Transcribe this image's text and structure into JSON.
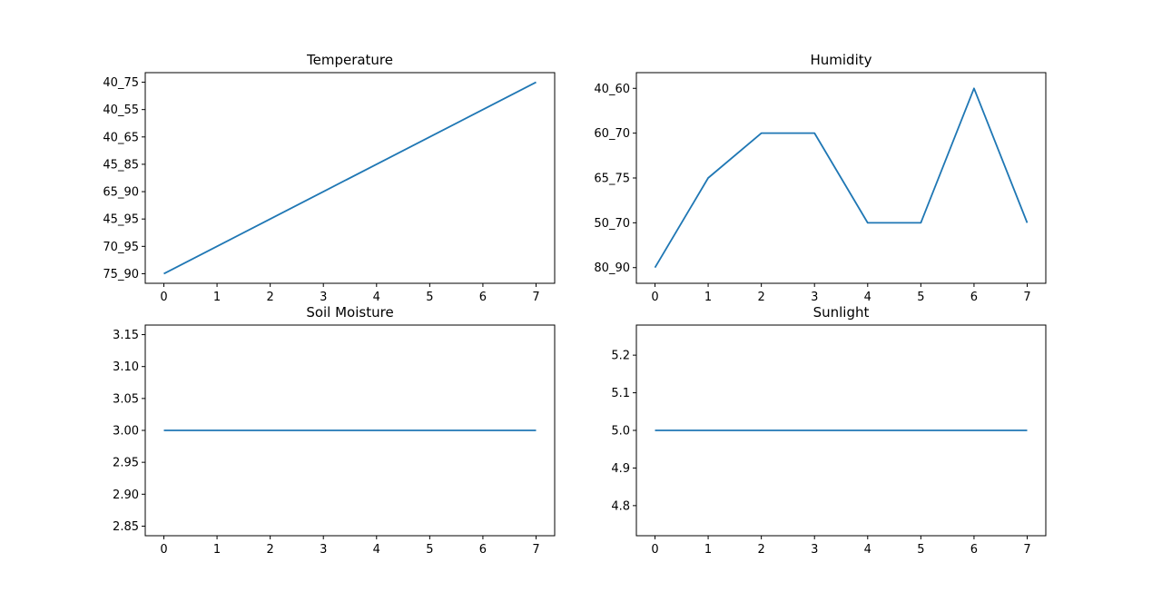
{
  "colors": {
    "series": "#1f77b4",
    "axes": "#000000",
    "background": "#ffffff"
  },
  "chart_data": [
    {
      "type": "line",
      "title": "Temperature",
      "xlabel": "",
      "ylabel": "",
      "x": [
        0,
        1,
        2,
        3,
        4,
        5,
        6,
        7
      ],
      "y_categories": [
        "75_90",
        "70_95",
        "45_95",
        "65_90",
        "45_85",
        "40_65",
        "40_55",
        "40_75"
      ],
      "series": [
        {
          "values": [
            "75_90",
            "70_95",
            "45_95",
            "65_90",
            "45_85",
            "40_65",
            "40_55",
            "40_75"
          ]
        }
      ],
      "xlim": [
        -0.35,
        7.35
      ],
      "xticks": [
        0,
        1,
        2,
        3,
        4,
        5,
        6,
        7
      ],
      "grid": false,
      "legend": "none"
    },
    {
      "type": "line",
      "title": "Humidity",
      "xlabel": "",
      "ylabel": "",
      "x": [
        0,
        1,
        2,
        3,
        4,
        5,
        6,
        7
      ],
      "y_categories": [
        "80_90",
        "50_70",
        "65_75",
        "60_70",
        "40_60"
      ],
      "series": [
        {
          "values": [
            "80_90",
            "65_75",
            "60_70",
            "60_70",
            "50_70",
            "50_70",
            "40_60",
            "50_70"
          ]
        }
      ],
      "xlim": [
        -0.35,
        7.35
      ],
      "xticks": [
        0,
        1,
        2,
        3,
        4,
        5,
        6,
        7
      ],
      "grid": false,
      "legend": "none"
    },
    {
      "type": "line",
      "title": "Soil Moisture",
      "xlabel": "",
      "ylabel": "",
      "x": [
        0,
        1,
        2,
        3,
        4,
        5,
        6,
        7
      ],
      "series": [
        {
          "values": [
            3,
            3,
            3,
            3,
            3,
            3,
            3,
            3
          ]
        }
      ],
      "xlim": [
        -0.35,
        7.35
      ],
      "ylim": [
        2.835,
        3.165
      ],
      "xticks": [
        0,
        1,
        2,
        3,
        4,
        5,
        6,
        7
      ],
      "yticks": [
        "2.85",
        "2.90",
        "2.95",
        "3.00",
        "3.05",
        "3.10",
        "3.15"
      ],
      "grid": false,
      "legend": "none"
    },
    {
      "type": "line",
      "title": "Sunlight",
      "xlabel": "",
      "ylabel": "",
      "x": [
        0,
        1,
        2,
        3,
        4,
        5,
        6,
        7
      ],
      "series": [
        {
          "values": [
            5,
            5,
            5,
            5,
            5,
            5,
            5,
            5
          ]
        }
      ],
      "xlim": [
        -0.35,
        7.35
      ],
      "ylim": [
        4.72,
        5.28
      ],
      "xticks": [
        0,
        1,
        2,
        3,
        4,
        5,
        6,
        7
      ],
      "yticks": [
        "4.8",
        "4.9",
        "5.0",
        "5.1",
        "5.2"
      ],
      "grid": false,
      "legend": "none"
    }
  ]
}
